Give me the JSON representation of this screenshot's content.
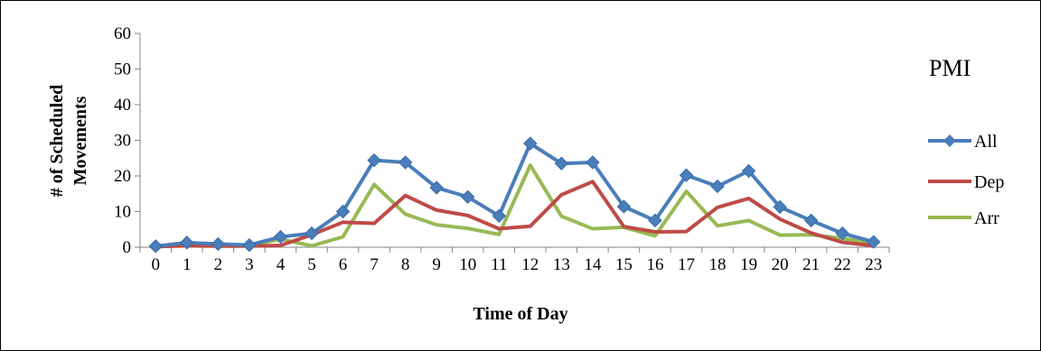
{
  "chart_data": {
    "type": "line",
    "title": "PMI",
    "xlabel": "Time of Day",
    "ylabel": "# of Scheduled Movements",
    "ylim": [
      0,
      60
    ],
    "yticks": [
      0,
      10,
      20,
      30,
      40,
      50,
      60
    ],
    "categories": [
      "0",
      "1",
      "2",
      "3",
      "4",
      "5",
      "6",
      "7",
      "8",
      "9",
      "10",
      "11",
      "12",
      "13",
      "14",
      "15",
      "16",
      "17",
      "18",
      "19",
      "20",
      "21",
      "22",
      "23"
    ],
    "legend_position": "right",
    "grid": false,
    "series": [
      {
        "name": "All",
        "color": "#4a7ebb",
        "marker": "diamond",
        "values": [
          0.3,
          1.3,
          0.9,
          0.6,
          2.9,
          3.9,
          10.0,
          24.4,
          23.8,
          16.7,
          14.1,
          8.8,
          29.1,
          23.5,
          23.8,
          11.4,
          7.5,
          20.2,
          17.1,
          21.4,
          11.3,
          7.5,
          3.9,
          1.5
        ]
      },
      {
        "name": "Dep",
        "color": "#be4b48",
        "marker": "none",
        "values": [
          0.2,
          0.4,
          0.3,
          0.3,
          0.5,
          3.5,
          7.0,
          6.7,
          14.5,
          10.4,
          8.9,
          5.2,
          5.9,
          14.7,
          18.4,
          5.8,
          4.3,
          4.4,
          11.2,
          13.7,
          7.9,
          4.0,
          1.4,
          0.4
        ]
      },
      {
        "name": "Arr",
        "color": "#98b954",
        "marker": "none",
        "values": [
          0.1,
          0.7,
          0.5,
          0.4,
          2.3,
          0.4,
          2.9,
          17.6,
          9.3,
          6.3,
          5.3,
          3.6,
          23.0,
          8.7,
          5.2,
          5.6,
          3.2,
          15.7,
          6.0,
          7.5,
          3.4,
          3.5,
          2.5,
          1.1
        ]
      }
    ]
  }
}
